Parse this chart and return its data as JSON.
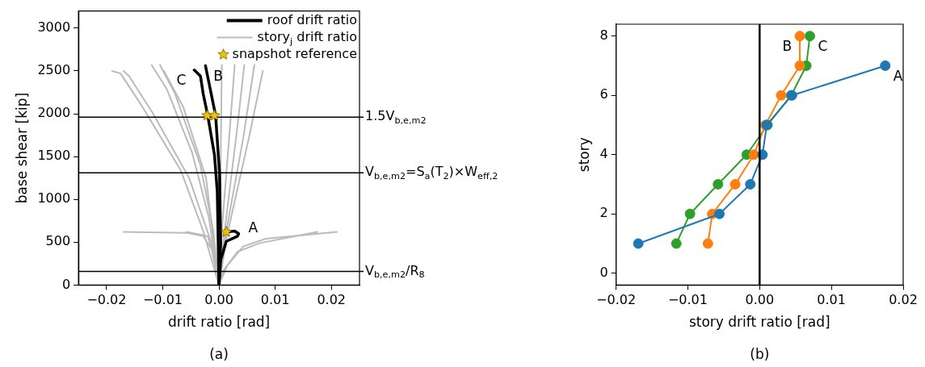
{
  "chart_data": [
    {
      "type": "line",
      "xlabel": "drift ratio [rad]",
      "ylabel": "base shear [kip]",
      "xlim": [
        -0.025,
        0.025
      ],
      "xticks": [
        -0.02,
        -0.01,
        {
          "value": 0,
          "label": "0.00"
        },
        0.01,
        0.02
      ],
      "ylim": [
        0,
        3200
      ],
      "yticks": [
        0,
        500,
        1000,
        1500,
        2000,
        2500,
        3000
      ],
      "legend": "top right",
      "marker": "none",
      "ref_lines": [
        {
          "axis": "y",
          "value": 1960,
          "label": "1.5V$_{b,e,m2}$",
          "color": "#000000"
        },
        {
          "axis": "y",
          "value": 1310,
          "label": "V$_{b,e,m2}$=S$_{a}$(T$_{2}$)×W$_{eff,2}$",
          "color": "#000000"
        },
        {
          "axis": "y",
          "value": 160,
          "label": "V$_{b,e,m2}$/R$_{8}$",
          "color": "#000000"
        }
      ],
      "series": [
        {
          "name": "roof drift ratio",
          "color": "#000000",
          "x": [
            0,
            0.0003,
            0.0001,
            -0.0006,
            -0.0024
          ],
          "values": [
            0,
            480,
            1310,
            1980,
            2560
          ]
        },
        {
          "color": "#000000",
          "x": [
            0,
            -0.0003,
            -0.0008,
            -0.002,
            -0.0028,
            -0.0033,
            -0.0044
          ],
          "values": [
            0,
            1090,
            1520,
            1980,
            2230,
            2440,
            2510
          ]
        },
        {
          "color": "#000000",
          "x": [
            0,
            0.0003,
            0.0013,
            0.0033,
            0.0035,
            0.0028,
            0.0013
          ],
          "values": [
            0,
            290,
            510,
            570,
            600,
            630,
            620
          ]
        },
        {
          "name": "story$_{j}$ drift ratio",
          "color": "#bbbbbb",
          "x": [
            0,
            -0.0028,
            -0.0068,
            -0.0138,
            -0.0175,
            -0.019
          ],
          "values": [
            0,
            630,
            1340,
            2100,
            2470,
            2500
          ]
        },
        {
          "color": "#bbbbbb",
          "x": [
            0,
            -0.0013,
            -0.0053,
            -0.0118,
            -0.016,
            -0.017
          ],
          "values": [
            0,
            480,
            1250,
            2010,
            2440,
            2500
          ]
        },
        {
          "color": "#bbbbbb",
          "x": [
            0,
            -0.0018,
            -0.0048,
            -0.0093,
            -0.012
          ],
          "values": [
            0,
            790,
            1550,
            2290,
            2570
          ]
        },
        {
          "color": "#bbbbbb",
          "x": [
            0,
            -0.001,
            -0.0033,
            -0.0078,
            -0.0105
          ],
          "values": [
            0,
            630,
            1400,
            2230,
            2570
          ]
        },
        {
          "color": "#bbbbbb",
          "x": [
            0,
            -0.0023,
            -0.0063,
            -0.0098
          ],
          "values": [
            0,
            1250,
            2070,
            2500
          ]
        },
        {
          "color": "#bbbbbb",
          "x": [
            0,
            0.0003,
            0.0005
          ],
          "values": [
            0,
            1400,
            2570
          ]
        },
        {
          "color": "#bbbbbb",
          "x": [
            0,
            0.0005,
            0.0018,
            0.0028
          ],
          "values": [
            0,
            630,
            1710,
            2570
          ]
        },
        {
          "color": "#bbbbbb",
          "x": [
            0,
            0.001,
            0.0033,
            0.0045
          ],
          "values": [
            0,
            630,
            1860,
            2570
          ]
        },
        {
          "color": "#bbbbbb",
          "x": [
            0,
            0.0013,
            0.0043,
            0.0063
          ],
          "values": [
            0,
            630,
            1710,
            2570
          ]
        },
        {
          "color": "#bbbbbb",
          "x": [
            0,
            0.0015,
            0.0053,
            0.0078
          ],
          "values": [
            0,
            600,
            1710,
            2500
          ]
        },
        {
          "color": "#bbbbbb",
          "x": [
            0,
            -0.0013,
            -0.0028,
            -0.0058,
            -0.017
          ],
          "values": [
            0,
            420,
            570,
            610,
            620
          ]
        },
        {
          "color": "#bbbbbb",
          "x": [
            0,
            -0.0008,
            -0.002,
            -0.0058
          ],
          "values": [
            0,
            330,
            570,
            620
          ]
        },
        {
          "color": "#bbbbbb",
          "x": [
            0,
            0.0015,
            0.0043,
            0.0083,
            0.021
          ],
          "values": [
            0,
            230,
            450,
            540,
            620
          ]
        },
        {
          "color": "#bbbbbb",
          "x": [
            0,
            0.0008,
            0.0033,
            0.0073,
            0.0175
          ],
          "values": [
            0,
            170,
            390,
            490,
            620
          ]
        },
        {
          "name": "snapshot reference",
          "type": "scatter",
          "marker": "star",
          "color": "#f2c200",
          "x": [
            -0.0021,
            -0.0008,
            0.0013
          ],
          "values": [
            1980,
            1980,
            620
          ]
        }
      ],
      "annotations": [
        {
          "text": "A",
          "x": 0.0035,
          "y": 600
        },
        {
          "text": "B",
          "x": -0.0024,
          "y": 2560
        },
        {
          "text": "C",
          "x": -0.0044,
          "y": 2510
        },
        "(a)"
      ]
    },
    {
      "type": "line",
      "xlabel": "story drift ratio [rad]",
      "ylabel": "story",
      "xlim": [
        -0.02,
        0.02
      ],
      "xticks": [
        -0.02,
        -0.01,
        {
          "value": 0,
          "label": "0.00"
        },
        0.01,
        0.02
      ],
      "ylim": [
        -0.4,
        8.4
      ],
      "yticks": [
        0,
        2,
        4,
        6,
        8
      ],
      "marker": "circle",
      "ref_lines": [
        {
          "axis": "x",
          "value": 0,
          "color": "#000000"
        }
      ],
      "series": [
        {
          "color": "#1f77b4",
          "x": [
            -0.0169,
            -0.0056,
            -0.0013,
            0.0004,
            0.001,
            0.0045,
            0.0175
          ],
          "values": [
            1,
            2,
            3,
            4,
            5,
            6,
            7
          ]
        },
        {
          "color": "#ff7f0e",
          "x": [
            -0.0072,
            -0.0066,
            -0.0034,
            -0.0008,
            0.0008,
            0.003,
            0.0056,
            0.0056
          ],
          "values": [
            1,
            2,
            3,
            4,
            5,
            6,
            7,
            8
          ]
        },
        {
          "color": "#2ca02c",
          "x": [
            -0.0116,
            -0.0097,
            -0.0058,
            -0.0018,
            0.0011,
            0.0044,
            0.0065,
            0.007
          ],
          "values": [
            1,
            2,
            3,
            4,
            5,
            6,
            7,
            8
          ]
        }
      ],
      "annotations": [
        {
          "text": "A",
          "x": 0.0175,
          "y": 7
        },
        {
          "text": "B",
          "x": 0.0056,
          "y": 8
        },
        {
          "text": "C",
          "x": 0.007,
          "y": 8
        },
        "(b)"
      ]
    }
  ]
}
